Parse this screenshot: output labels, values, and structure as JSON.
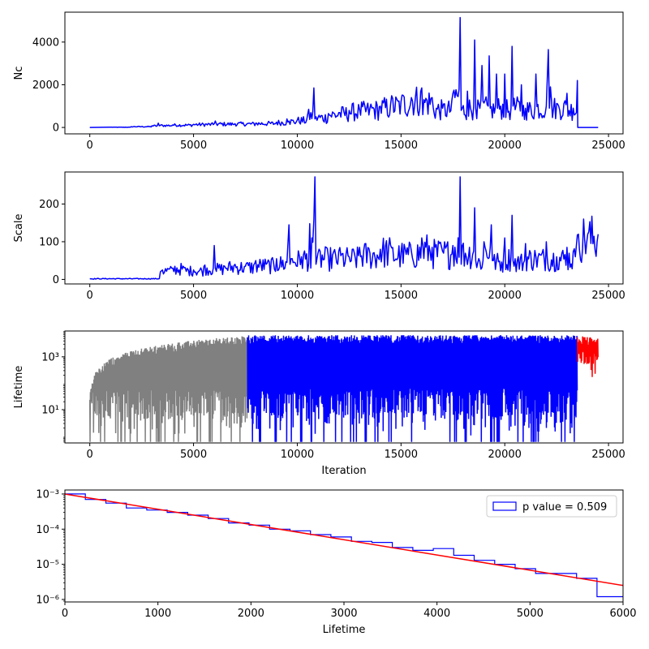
{
  "chart_data": [
    {
      "id": "nc",
      "type": "line",
      "title": "",
      "xlabel": "",
      "ylabel": "Nc",
      "xlim": [
        -1200,
        25700
      ],
      "ylim": [
        -300,
        5400
      ],
      "xticks": [
        0,
        5000,
        10000,
        15000,
        20000,
        25000
      ],
      "xtick_labels": [
        "0",
        "5000",
        "10000",
        "15000",
        "20000",
        "25000"
      ],
      "yticks": [
        0,
        2000,
        4000
      ],
      "ytick_labels": [
        "0",
        "2000",
        "4000"
      ],
      "grid": false,
      "series": [
        {
          "color": "#0000ff",
          "x": [
            0,
            1000,
            2000,
            3000,
            3300,
            3350,
            3400,
            4000,
            5000,
            6000,
            6050,
            6100,
            7000,
            8000,
            9000,
            9500,
            9550,
            9600,
            10000,
            10500,
            10800,
            10850,
            10900,
            11500,
            12000,
            12500,
            13000,
            13500,
            14000,
            14500,
            15000,
            15500,
            16000,
            16050,
            16100,
            16500,
            17000,
            17500,
            17850,
            17900,
            17950,
            18200,
            18500,
            18550,
            18600,
            18900,
            19200,
            19250,
            19300,
            19600,
            19800,
            20000,
            20300,
            20350,
            20400,
            20800,
            21000,
            21500,
            22000,
            22100,
            22150,
            22200,
            22600,
            23000,
            23300,
            23500,
            23520,
            24000,
            24500
          ],
          "y": [
            0,
            10,
            40,
            80,
            200,
            80,
            100,
            120,
            150,
            170,
            300,
            170,
            180,
            200,
            250,
            400,
            250,
            300,
            350,
            600,
            1850,
            400,
            500,
            650,
            700,
            800,
            850,
            900,
            1000,
            1100,
            1200,
            1400,
            1850,
            600,
            1300,
            1400,
            900,
            1600,
            5150,
            800,
            900,
            1700,
            1000,
            4100,
            900,
            2900,
            1000,
            3350,
            900,
            2500,
            1000,
            2500,
            900,
            3800,
            1000,
            2000,
            900,
            2500,
            1000,
            3650,
            900,
            1900,
            1000,
            1600,
            900,
            2200,
            0,
            0,
            0
          ]
        }
      ]
    },
    {
      "id": "scale",
      "type": "line",
      "title": "",
      "xlabel": "",
      "ylabel": "Scale",
      "xlim": [
        -1200,
        25700
      ],
      "ylim": [
        -12,
        285
      ],
      "xticks": [
        0,
        5000,
        10000,
        15000,
        20000,
        25000
      ],
      "xtick_labels": [
        "0",
        "5000",
        "10000",
        "15000",
        "20000",
        "25000"
      ],
      "yticks": [
        0,
        100,
        200
      ],
      "ytick_labels": [
        "0",
        "100",
        "200"
      ],
      "grid": false,
      "series": [
        {
          "color": "#0000ff",
          "x": [
            0,
            3350,
            3400,
            3500,
            4000,
            4500,
            5000,
            5500,
            5950,
            6000,
            6050,
            6500,
            7000,
            7500,
            8000,
            8500,
            9000,
            9500,
            9600,
            9650,
            9700,
            10200,
            10600,
            10650,
            10700,
            10850,
            10900,
            11000,
            11500,
            12000,
            12500,
            13000,
            13500,
            14000,
            14500,
            15000,
            15500,
            16000,
            16500,
            17000,
            17500,
            17850,
            17900,
            17950,
            18500,
            18550,
            18600,
            19000,
            19300,
            19350,
            19400,
            20000,
            20300,
            20350,
            20400,
            21000,
            21500,
            22000,
            22500,
            23000,
            23400,
            23500,
            23550,
            24000,
            24500
          ],
          "y": [
            2,
            2,
            20,
            25,
            30,
            35,
            25,
            35,
            30,
            90,
            30,
            35,
            40,
            35,
            50,
            40,
            55,
            45,
            145,
            40,
            55,
            60,
            148,
            30,
            110,
            272,
            40,
            70,
            60,
            75,
            60,
            85,
            70,
            80,
            90,
            70,
            75,
            110,
            85,
            75,
            90,
            272,
            40,
            90,
            75,
            190,
            50,
            100,
            85,
            145,
            50,
            110,
            60,
            170,
            50,
            95,
            60,
            100,
            60,
            85,
            60,
            118,
            120,
            120,
            120
          ]
        }
      ]
    },
    {
      "id": "lifetime",
      "type": "line",
      "title": "",
      "xlabel": "Iteration",
      "ylabel": "Lifetime",
      "yscale": "log",
      "xlim": [
        -1200,
        25700
      ],
      "ylim": [
        0.55,
        9500
      ],
      "xticks": [
        0,
        5000,
        10000,
        15000,
        20000,
        25000
      ],
      "xtick_labels": [
        "0",
        "5000",
        "10000",
        "15000",
        "20000",
        "25000"
      ],
      "yticks": [
        10,
        1000
      ],
      "ytick_labels": [
        "10¹",
        "10³"
      ],
      "grid": false,
      "series": [
        {
          "color": "#808080",
          "x_range": [
            0,
            7600
          ]
        },
        {
          "color": "#0000ff",
          "x_range": [
            7600,
            23500
          ]
        },
        {
          "color": "#ff0000",
          "x_range": [
            23500,
            24500
          ]
        }
      ]
    },
    {
      "id": "hist",
      "type": "line",
      "title": "",
      "xlabel": "Lifetime",
      "ylabel": "",
      "yscale": "log",
      "xlim": [
        0,
        6000
      ],
      "ylim": [
        8.5e-07,
        0.0013
      ],
      "xticks": [
        0,
        1000,
        2000,
        3000,
        4000,
        5000,
        6000
      ],
      "xtick_labels": [
        "0",
        "1000",
        "2000",
        "3000",
        "4000",
        "5000",
        "6000"
      ],
      "yticks": [
        1e-06,
        1e-05,
        0.0001,
        0.001
      ],
      "ytick_labels": [
        "10⁻⁶",
        "10⁻⁵",
        "10⁻⁴",
        "10⁻³"
      ],
      "grid": false,
      "legend": {
        "placement": "top-right",
        "label": "p value = 0.509"
      },
      "histogram": {
        "color": "#0000ff",
        "bin_edges": [
          0,
          220,
          440,
          660,
          880,
          1100,
          1320,
          1540,
          1760,
          1980,
          2200,
          2420,
          2640,
          2860,
          3080,
          3300,
          3520,
          3740,
          3960,
          4180,
          4400,
          4620,
          4840,
          5060,
          5280,
          5500,
          5720,
          6000
        ],
        "values": [
          0.001,
          0.0007,
          0.00055,
          0.0004,
          0.00035,
          0.0003,
          0.00025,
          0.0002,
          0.00015,
          0.00013,
          0.0001,
          9e-05,
          7e-05,
          6e-05,
          4.5e-05,
          4.2e-05,
          3e-05,
          2.5e-05,
          2.8e-05,
          1.8e-05,
          1.3e-05,
          1e-05,
          7.5e-06,
          5.5e-06,
          5.5e-06,
          4e-06,
          1.2e-06
        ]
      },
      "fit": {
        "color": "#ff0000",
        "x": [
          0,
          6000
        ],
        "y": [
          0.001,
          2.5e-06
        ]
      }
    }
  ]
}
